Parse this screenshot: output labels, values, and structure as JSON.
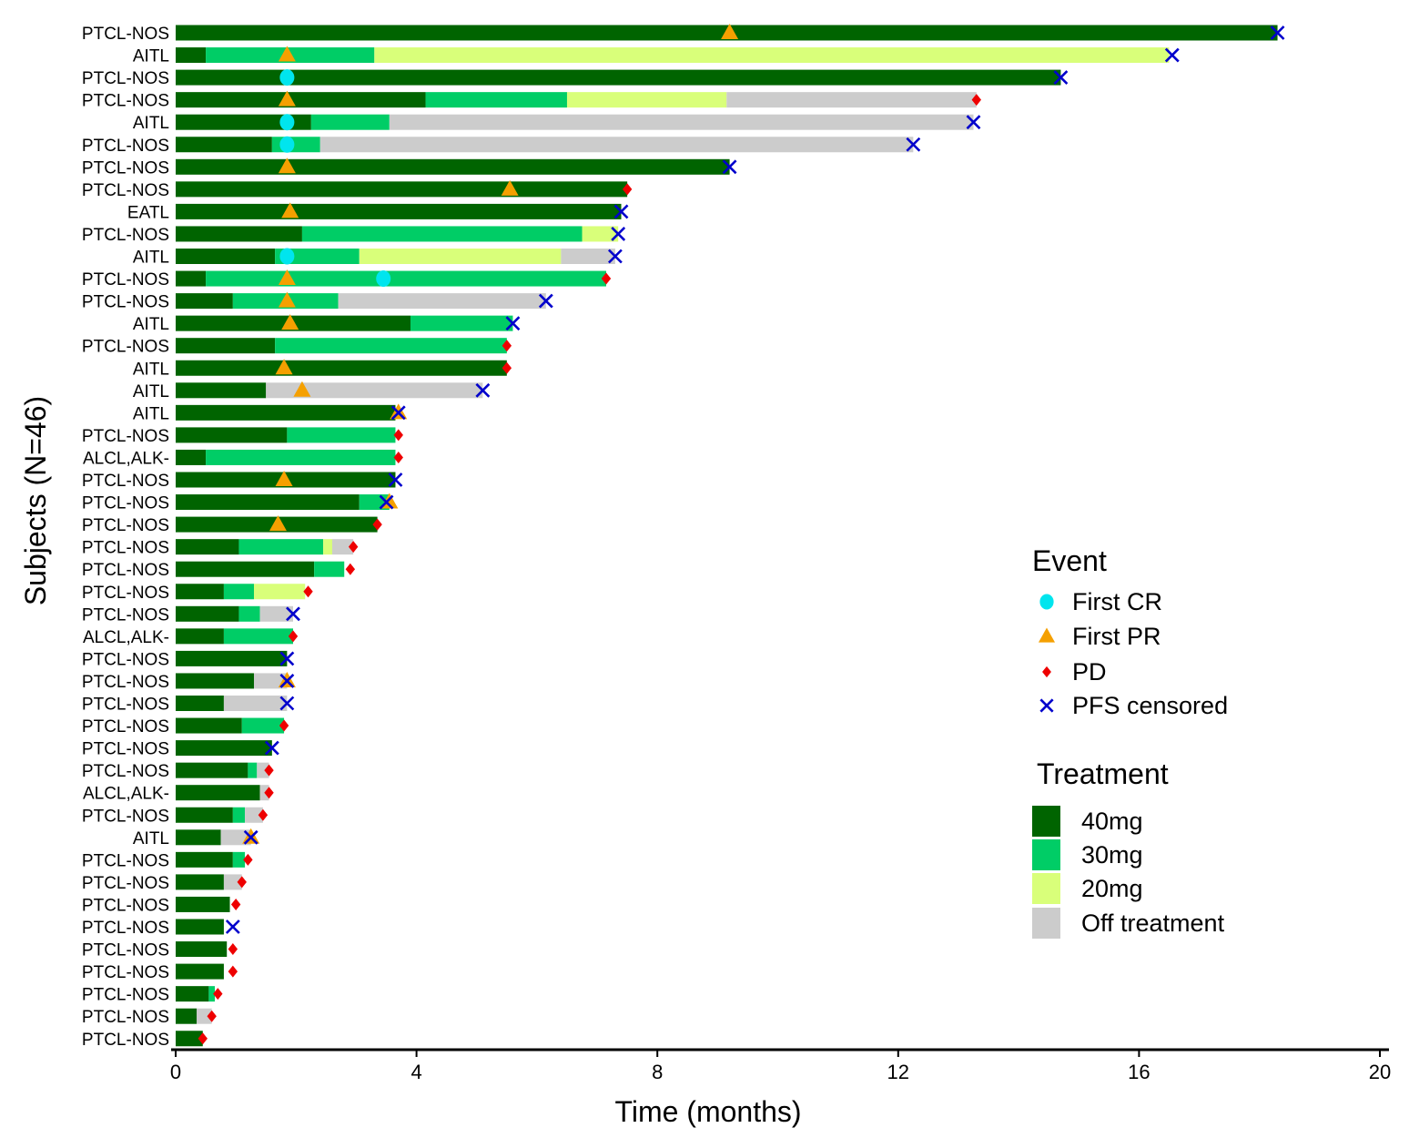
{
  "chart_data": {
    "type": "swimmer",
    "xlabel": "Time (months)",
    "ylabel": "Subjects (N=46)",
    "xlim": [
      0,
      20
    ],
    "xticks": [
      0,
      4,
      8,
      12,
      16,
      20
    ],
    "colors": {
      "40mg": "#006400",
      "30mg": "#00CD66",
      "20mg": "#D9FF7A",
      "off": "#CCCCCC",
      "cr": "#00E5EE",
      "pr": "#F5A000",
      "pd": "#EE0000",
      "censored": "#0000CC"
    },
    "legend": {
      "event_title": "Event",
      "event_items": [
        {
          "key": "cr",
          "label": "First CR"
        },
        {
          "key": "pr",
          "label": "First PR"
        },
        {
          "key": "pd",
          "label": "PD"
        },
        {
          "key": "censored",
          "label": "PFS censored"
        }
      ],
      "treatment_title": "Treatment",
      "treatment_items": [
        {
          "key": "40mg",
          "label": "40mg"
        },
        {
          "key": "30mg",
          "label": "30mg"
        },
        {
          "key": "20mg",
          "label": "20mg"
        },
        {
          "key": "off",
          "label": "Off treatment"
        }
      ]
    },
    "subjects": [
      {
        "label": "PTCL-NOS",
        "segments": [
          [
            "40mg",
            0,
            18.3
          ]
        ],
        "events": [
          [
            "pr",
            9.2
          ],
          [
            "censored",
            18.3
          ]
        ]
      },
      {
        "label": "AITL",
        "segments": [
          [
            "40mg",
            0,
            0.5
          ],
          [
            "30mg",
            0.5,
            3.3
          ],
          [
            "20mg",
            3.3,
            16.5
          ]
        ],
        "events": [
          [
            "pr",
            1.85
          ],
          [
            "censored",
            16.55
          ]
        ]
      },
      {
        "label": "PTCL-NOS",
        "segments": [
          [
            "40mg",
            0,
            14.7
          ]
        ],
        "events": [
          [
            "cr",
            1.85
          ],
          [
            "censored",
            14.7
          ]
        ]
      },
      {
        "label": "PTCL-NOS",
        "segments": [
          [
            "40mg",
            0,
            4.15
          ],
          [
            "30mg",
            4.15,
            6.5
          ],
          [
            "20mg",
            6.5,
            9.15
          ],
          [
            "off",
            9.15,
            13.3
          ]
        ],
        "events": [
          [
            "pr",
            1.85
          ],
          [
            "pd",
            13.3
          ]
        ]
      },
      {
        "label": "AITL",
        "segments": [
          [
            "40mg",
            0,
            2.25
          ],
          [
            "30mg",
            2.25,
            3.55
          ],
          [
            "off",
            3.55,
            13.25
          ]
        ],
        "events": [
          [
            "cr",
            1.85
          ],
          [
            "censored",
            13.25
          ]
        ]
      },
      {
        "label": "PTCL-NOS",
        "segments": [
          [
            "40mg",
            0,
            1.6
          ],
          [
            "30mg",
            1.6,
            2.4
          ],
          [
            "off",
            2.4,
            12.25
          ]
        ],
        "events": [
          [
            "cr",
            1.85
          ],
          [
            "censored",
            12.25
          ]
        ]
      },
      {
        "label": "PTCL-NOS",
        "segments": [
          [
            "40mg",
            0,
            9.2
          ]
        ],
        "events": [
          [
            "pr",
            1.85
          ],
          [
            "censored",
            9.2
          ]
        ]
      },
      {
        "label": "PTCL-NOS",
        "segments": [
          [
            "40mg",
            0,
            7.5
          ]
        ],
        "events": [
          [
            "pr",
            5.55
          ],
          [
            "pd",
            7.5
          ]
        ]
      },
      {
        "label": "EATL",
        "segments": [
          [
            "40mg",
            0,
            7.4
          ]
        ],
        "events": [
          [
            "pr",
            1.9
          ],
          [
            "censored",
            7.4
          ]
        ]
      },
      {
        "label": "PTCL-NOS",
        "segments": [
          [
            "40mg",
            0,
            2.1
          ],
          [
            "30mg",
            2.1,
            6.75
          ],
          [
            "20mg",
            6.75,
            7.35
          ]
        ],
        "events": [
          [
            "censored",
            7.35
          ]
        ]
      },
      {
        "label": "AITL",
        "segments": [
          [
            "40mg",
            0,
            1.65
          ],
          [
            "30mg",
            1.65,
            3.05
          ],
          [
            "20mg",
            3.05,
            6.4
          ],
          [
            "off",
            6.4,
            7.3
          ]
        ],
        "events": [
          [
            "cr",
            1.85
          ],
          [
            "censored",
            7.3
          ]
        ]
      },
      {
        "label": "PTCL-NOS",
        "segments": [
          [
            "40mg",
            0,
            0.5
          ],
          [
            "30mg",
            0.5,
            7.15
          ]
        ],
        "events": [
          [
            "pr",
            1.85
          ],
          [
            "cr",
            3.45
          ],
          [
            "pd",
            7.15
          ]
        ]
      },
      {
        "label": "PTCL-NOS",
        "segments": [
          [
            "40mg",
            0,
            0.95
          ],
          [
            "30mg",
            0.95,
            2.7
          ],
          [
            "off",
            2.7,
            6.15
          ]
        ],
        "events": [
          [
            "pr",
            1.85
          ],
          [
            "censored",
            6.15
          ]
        ]
      },
      {
        "label": "AITL",
        "segments": [
          [
            "40mg",
            0,
            3.9
          ],
          [
            "30mg",
            3.9,
            5.6
          ]
        ],
        "events": [
          [
            "pr",
            1.9
          ],
          [
            "censored",
            5.6
          ]
        ]
      },
      {
        "label": "PTCL-NOS",
        "segments": [
          [
            "40mg",
            0,
            1.65
          ],
          [
            "30mg",
            1.65,
            5.5
          ]
        ],
        "events": [
          [
            "pd",
            5.5
          ]
        ]
      },
      {
        "label": "AITL",
        "segments": [
          [
            "40mg",
            0,
            5.5
          ]
        ],
        "events": [
          [
            "pr",
            1.8
          ],
          [
            "pd",
            5.5
          ]
        ]
      },
      {
        "label": "AITL",
        "segments": [
          [
            "40mg",
            0,
            1.5
          ],
          [
            "off",
            1.5,
            5.1
          ]
        ],
        "events": [
          [
            "pr",
            2.1
          ],
          [
            "censored",
            5.1
          ]
        ]
      },
      {
        "label": "AITL",
        "segments": [
          [
            "40mg",
            0,
            3.65
          ]
        ],
        "events": [
          [
            "pr",
            3.7
          ],
          [
            "censored",
            3.7
          ]
        ]
      },
      {
        "label": "PTCL-NOS",
        "segments": [
          [
            "40mg",
            0,
            1.85
          ],
          [
            "30mg",
            1.85,
            3.65
          ]
        ],
        "events": [
          [
            "pd",
            3.7
          ]
        ]
      },
      {
        "label": "ALCL,ALK-",
        "segments": [
          [
            "40mg",
            0,
            0.5
          ],
          [
            "30mg",
            0.5,
            3.65
          ]
        ],
        "events": [
          [
            "pd",
            3.7
          ]
        ]
      },
      {
        "label": "PTCL-NOS",
        "segments": [
          [
            "40mg",
            0,
            3.65
          ]
        ],
        "events": [
          [
            "pr",
            1.8
          ],
          [
            "censored",
            3.65
          ]
        ]
      },
      {
        "label": "PTCL-NOS",
        "segments": [
          [
            "40mg",
            0,
            3.05
          ],
          [
            "30mg",
            3.05,
            3.55
          ]
        ],
        "events": [
          [
            "pr",
            3.55
          ],
          [
            "censored",
            3.5
          ]
        ]
      },
      {
        "label": "PTCL-NOS",
        "segments": [
          [
            "40mg",
            0,
            3.35
          ]
        ],
        "events": [
          [
            "pr",
            1.7
          ],
          [
            "pd",
            3.35
          ]
        ]
      },
      {
        "label": "PTCL-NOS",
        "segments": [
          [
            "40mg",
            0,
            1.05
          ],
          [
            "30mg",
            1.05,
            2.45
          ],
          [
            "20mg",
            2.45,
            2.6
          ],
          [
            "off",
            2.6,
            2.95
          ]
        ],
        "events": [
          [
            "pd",
            2.95
          ]
        ]
      },
      {
        "label": "PTCL-NOS",
        "segments": [
          [
            "40mg",
            0,
            2.3
          ],
          [
            "30mg",
            2.3,
            2.8
          ]
        ],
        "events": [
          [
            "pd",
            2.9
          ]
        ]
      },
      {
        "label": "PTCL-NOS",
        "segments": [
          [
            "40mg",
            0,
            0.8
          ],
          [
            "30mg",
            0.8,
            1.3
          ],
          [
            "20mg",
            1.3,
            2.15
          ]
        ],
        "events": [
          [
            "pd",
            2.2
          ]
        ]
      },
      {
        "label": "PTCL-NOS",
        "segments": [
          [
            "40mg",
            0,
            1.05
          ],
          [
            "30mg",
            1.05,
            1.4
          ],
          [
            "off",
            1.4,
            1.95
          ]
        ],
        "events": [
          [
            "censored",
            1.95
          ]
        ]
      },
      {
        "label": "ALCL,ALK-",
        "segments": [
          [
            "40mg",
            0,
            0.8
          ],
          [
            "30mg",
            0.8,
            1.95
          ]
        ],
        "events": [
          [
            "pd",
            1.95
          ]
        ]
      },
      {
        "label": "PTCL-NOS",
        "segments": [
          [
            "40mg",
            0,
            1.85
          ]
        ],
        "events": [
          [
            "censored",
            1.85
          ]
        ]
      },
      {
        "label": "PTCL-NOS",
        "segments": [
          [
            "40mg",
            0,
            1.3
          ],
          [
            "off",
            1.3,
            1.85
          ]
        ],
        "events": [
          [
            "pr",
            1.85
          ],
          [
            "censored",
            1.85
          ]
        ]
      },
      {
        "label": "PTCL-NOS",
        "segments": [
          [
            "40mg",
            0,
            0.8
          ],
          [
            "off",
            0.8,
            1.85
          ]
        ],
        "events": [
          [
            "censored",
            1.85
          ]
        ]
      },
      {
        "label": "PTCL-NOS",
        "segments": [
          [
            "40mg",
            0,
            1.1
          ],
          [
            "30mg",
            1.1,
            1.8
          ]
        ],
        "events": [
          [
            "pd",
            1.8
          ]
        ]
      },
      {
        "label": "PTCL-NOS",
        "segments": [
          [
            "40mg",
            0,
            1.6
          ]
        ],
        "events": [
          [
            "censored",
            1.6
          ]
        ]
      },
      {
        "label": "PTCL-NOS",
        "segments": [
          [
            "40mg",
            0,
            1.2
          ],
          [
            "30mg",
            1.2,
            1.35
          ],
          [
            "off",
            1.35,
            1.55
          ]
        ],
        "events": [
          [
            "pd",
            1.55
          ]
        ]
      },
      {
        "label": "ALCL,ALK-",
        "segments": [
          [
            "40mg",
            0,
            1.4
          ],
          [
            "off",
            1.4,
            1.55
          ]
        ],
        "events": [
          [
            "pd",
            1.55
          ]
        ]
      },
      {
        "label": "PTCL-NOS",
        "segments": [
          [
            "40mg",
            0,
            0.95
          ],
          [
            "30mg",
            0.95,
            1.15
          ],
          [
            "off",
            1.15,
            1.45
          ]
        ],
        "events": [
          [
            "pd",
            1.45
          ]
        ]
      },
      {
        "label": "AITL",
        "segments": [
          [
            "40mg",
            0,
            0.75
          ],
          [
            "off",
            0.75,
            1.25
          ]
        ],
        "events": [
          [
            "pr",
            1.25
          ],
          [
            "censored",
            1.25
          ]
        ]
      },
      {
        "label": "PTCL-NOS",
        "segments": [
          [
            "40mg",
            0,
            0.95
          ],
          [
            "30mg",
            0.95,
            1.15
          ]
        ],
        "events": [
          [
            "pd",
            1.2
          ]
        ]
      },
      {
        "label": "PTCL-NOS",
        "segments": [
          [
            "40mg",
            0,
            0.8
          ],
          [
            "off",
            0.8,
            1.1
          ]
        ],
        "events": [
          [
            "pd",
            1.1
          ]
        ]
      },
      {
        "label": "PTCL-NOS",
        "segments": [
          [
            "40mg",
            0,
            0.9
          ]
        ],
        "events": [
          [
            "pd",
            1.0
          ]
        ]
      },
      {
        "label": "PTCL-NOS",
        "segments": [
          [
            "40mg",
            0,
            0.8
          ]
        ],
        "events": [
          [
            "censored",
            0.95
          ]
        ]
      },
      {
        "label": "PTCL-NOS",
        "segments": [
          [
            "40mg",
            0,
            0.85
          ]
        ],
        "events": [
          [
            "pd",
            0.95
          ]
        ]
      },
      {
        "label": "PTCL-NOS",
        "segments": [
          [
            "40mg",
            0,
            0.8
          ]
        ],
        "events": [
          [
            "pd",
            0.95
          ]
        ]
      },
      {
        "label": "PTCL-NOS",
        "segments": [
          [
            "40mg",
            0,
            0.55
          ],
          [
            "30mg",
            0.55,
            0.65
          ]
        ],
        "events": [
          [
            "pd",
            0.7
          ]
        ]
      },
      {
        "label": "PTCL-NOS",
        "segments": [
          [
            "40mg",
            0,
            0.35
          ],
          [
            "off",
            0.35,
            0.6
          ]
        ],
        "events": [
          [
            "pd",
            0.6
          ]
        ]
      },
      {
        "label": "PTCL-NOS",
        "segments": [
          [
            "40mg",
            0,
            0.45
          ]
        ],
        "events": [
          [
            "pd",
            0.45
          ]
        ]
      }
    ]
  }
}
